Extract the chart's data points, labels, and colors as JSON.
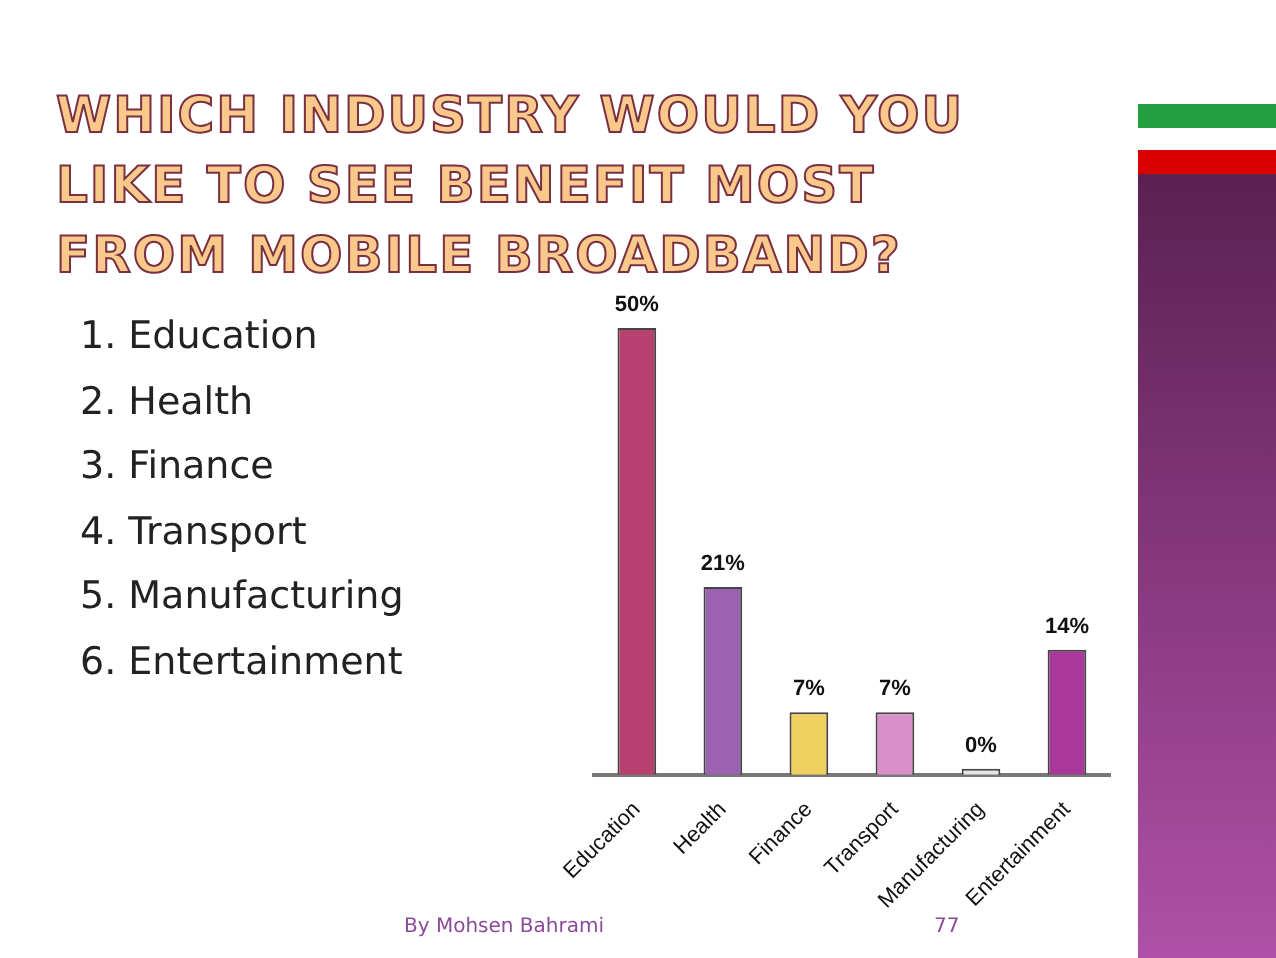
{
  "chart_data": {
    "type": "bar",
    "title": "WHICH INDUSTRY WOULD YOU LIKE TO SEE BENEFIT MOST FROM MOBILE BROADBAND?",
    "categories": [
      "Education",
      "Health",
      "Finance",
      "Transport",
      "Manufacturing",
      "Entertainment"
    ],
    "values": [
      50,
      21,
      7,
      7,
      0,
      14
    ],
    "colors": [
      "#b8406e",
      "#9a62b0",
      "#f0d060",
      "#d890c8",
      "#e4e4e4",
      "#a8389a"
    ],
    "value_labels": [
      "50%",
      "21%",
      "7%",
      "7%",
      "0%",
      "14%"
    ],
    "grid": false,
    "legend": false,
    "tick_labels": "x",
    "annotations": [
      "1. Education",
      "2. Health",
      "3. Finance",
      "4. Transport",
      "5. Manufacturing",
      "6. Entertainment",
      "By Mohsen Bahrami",
      "77"
    ]
  }
}
